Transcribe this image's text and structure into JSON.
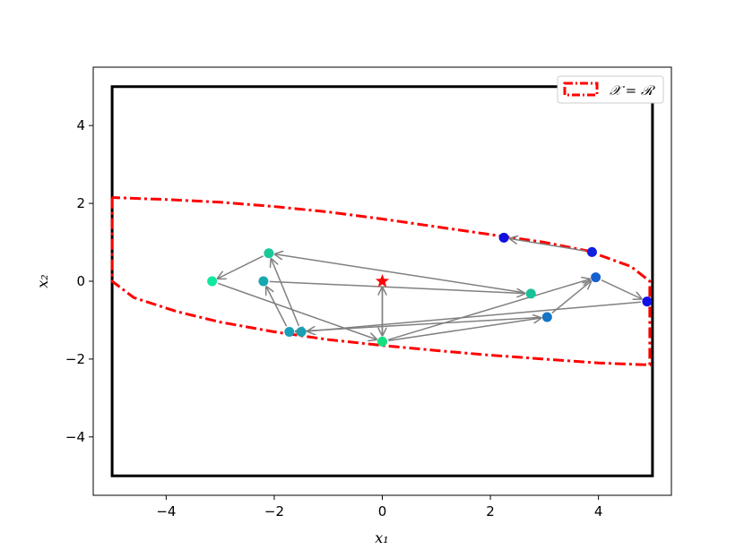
{
  "chart_data": {
    "type": "scatter",
    "title": "",
    "xlabel": "x₁",
    "ylabel": "x₂",
    "xlim": [
      -5.35,
      5.35
    ],
    "ylim": [
      -5.5,
      5.5
    ],
    "xticks": [
      -4,
      -2,
      0,
      2,
      4
    ],
    "yticks": [
      -4,
      -2,
      0,
      2,
      4
    ],
    "xtick_labels": [
      "−4",
      "−2",
      "0",
      "2",
      "4"
    ],
    "ytick_labels": [
      "−4",
      "−2",
      "0",
      "2",
      "4"
    ],
    "grid": false,
    "legend": {
      "position": "top-right",
      "label": "𝒳 = ℛ"
    },
    "outer_box": {
      "x": [
        -5,
        5
      ],
      "y": [
        -5,
        5
      ],
      "color": "#000000"
    },
    "region_polygon": {
      "color": "#ff0000",
      "points": [
        [
          -5,
          2.15
        ],
        [
          -5,
          0
        ],
        [
          -4.6,
          -0.42
        ],
        [
          -3.8,
          -0.78
        ],
        [
          -3.0,
          -1.05
        ],
        [
          -2.0,
          -1.3
        ],
        [
          -1.0,
          -1.5
        ],
        [
          0.0,
          -1.65
        ],
        [
          1.0,
          -1.78
        ],
        [
          2.0,
          -1.9
        ],
        [
          3.0,
          -2.0
        ],
        [
          4.0,
          -2.1
        ],
        [
          4.95,
          -2.15
        ],
        [
          4.95,
          0.0
        ],
        [
          4.6,
          0.38
        ],
        [
          3.8,
          0.78
        ],
        [
          3.0,
          1.0
        ],
        [
          2.0,
          1.2
        ],
        [
          1.0,
          1.4
        ],
        [
          0.0,
          1.6
        ],
        [
          -1.0,
          1.78
        ],
        [
          -2.0,
          1.92
        ],
        [
          -3.0,
          2.03
        ],
        [
          -4.0,
          2.1
        ],
        [
          -5,
          2.15
        ]
      ]
    },
    "center_marker": {
      "x": 0.0,
      "y": 0.0,
      "color": "#ff0000",
      "shape": "star"
    },
    "arrow_color": "#808080",
    "trajectory": [
      {
        "x": 0.0,
        "y": -1.55,
        "color": "#15e07f"
      },
      {
        "x": 0.0,
        "y": 0.0,
        "color": "#ff0000"
      },
      {
        "x": 0.0,
        "y": -1.55,
        "color": "#15e07f"
      },
      {
        "x": 3.95,
        "y": 0.1,
        "color": "#1560d0"
      },
      {
        "x": 4.9,
        "y": -0.52,
        "color": "#1010e8"
      },
      {
        "x": -1.5,
        "y": -1.3,
        "color": "#1a9fb0"
      },
      {
        "x": -2.1,
        "y": 0.72,
        "color": "#18c89a"
      },
      {
        "x": -3.15,
        "y": 0.0,
        "color": "#10e8a0"
      },
      {
        "x": 0.0,
        "y": -1.55,
        "color": "#15e07f"
      },
      {
        "x": 3.05,
        "y": -0.92,
        "color": "#1575c5"
      },
      {
        "x": -1.72,
        "y": -1.3,
        "color": "#1a9fb8"
      },
      {
        "x": -2.2,
        "y": 0.0,
        "color": "#15a8b0"
      },
      {
        "x": 2.75,
        "y": -0.32,
        "color": "#18c09a"
      },
      {
        "x": -2.1,
        "y": 0.72,
        "color": "#18c89a"
      }
    ],
    "extra_points": [
      {
        "x": 2.25,
        "y": 1.12,
        "color": "#1010e0"
      },
      {
        "x": 3.88,
        "y": 0.75,
        "color": "#1020e0"
      }
    ],
    "extra_arrows": [
      {
        "from": [
          3.88,
          0.75
        ],
        "to": [
          2.25,
          1.12
        ]
      },
      {
        "from": [
          3.05,
          -0.92
        ],
        "to": [
          3.95,
          0.1
        ]
      }
    ]
  }
}
